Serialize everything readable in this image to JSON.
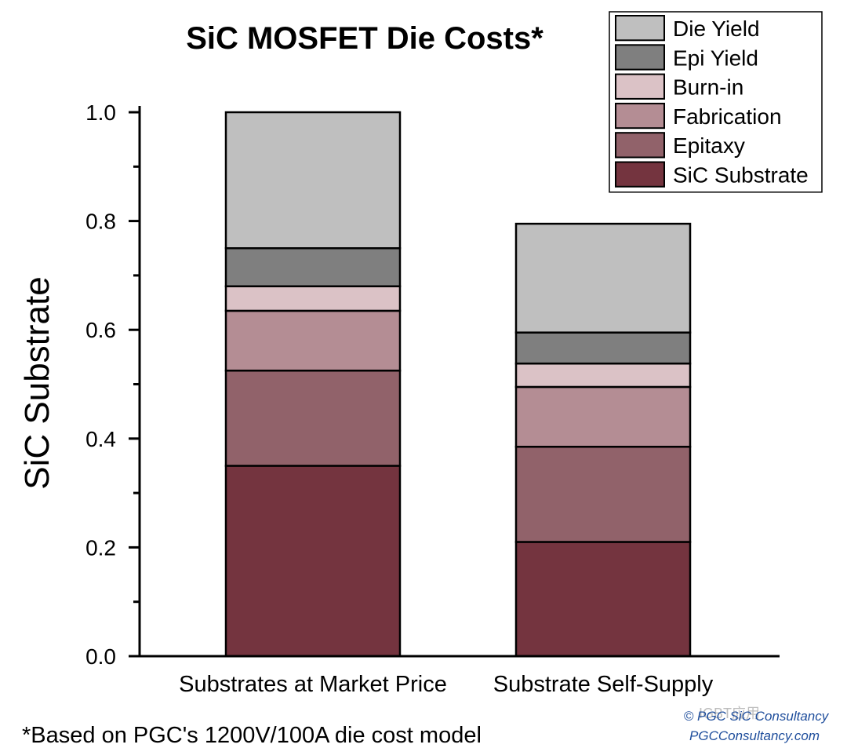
{
  "chart_data": {
    "type": "bar",
    "stacked": true,
    "title": "SiC MOSFET Die Costs*",
    "xlabel": "",
    "ylabel": "SiC Substrate",
    "ylim": [
      0,
      1.0
    ],
    "yticks": [
      "0.0",
      "0.2",
      "0.4",
      "0.6",
      "0.8",
      "1.0"
    ],
    "categories": [
      "Substrates at Market Price",
      "Substrate Self-Supply"
    ],
    "series": [
      {
        "name": "SiC Substrate",
        "color": "#74343f",
        "values": [
          0.35,
          0.21
        ]
      },
      {
        "name": "Epitaxy",
        "color": "#91626a",
        "values": [
          0.175,
          0.175
        ]
      },
      {
        "name": "Fabrication",
        "color": "#b48d94",
        "values": [
          0.11,
          0.11
        ]
      },
      {
        "name": "Burn-in",
        "color": "#dbc2c6",
        "values": [
          0.045,
          0.043
        ]
      },
      {
        "name": "Epi Yield",
        "color": "#7f7f7f",
        "values": [
          0.07,
          0.057
        ]
      },
      {
        "name": "Die Yield",
        "color": "#bfbfbf",
        "values": [
          0.25,
          0.2
        ]
      }
    ],
    "legend": {
      "position": "top-right",
      "order": [
        "Die Yield",
        "Epi Yield",
        "Burn-in",
        "Fabrication",
        "Epitaxy",
        "SiC Substrate"
      ]
    },
    "grid": false
  },
  "footnote": "*Based on PGC's 1200V/100A die cost model",
  "credit": {
    "line1": "© PGC SiC Consultancy",
    "line2": "PGCConsultancy.com"
  },
  "watermark": "IGBT应用"
}
